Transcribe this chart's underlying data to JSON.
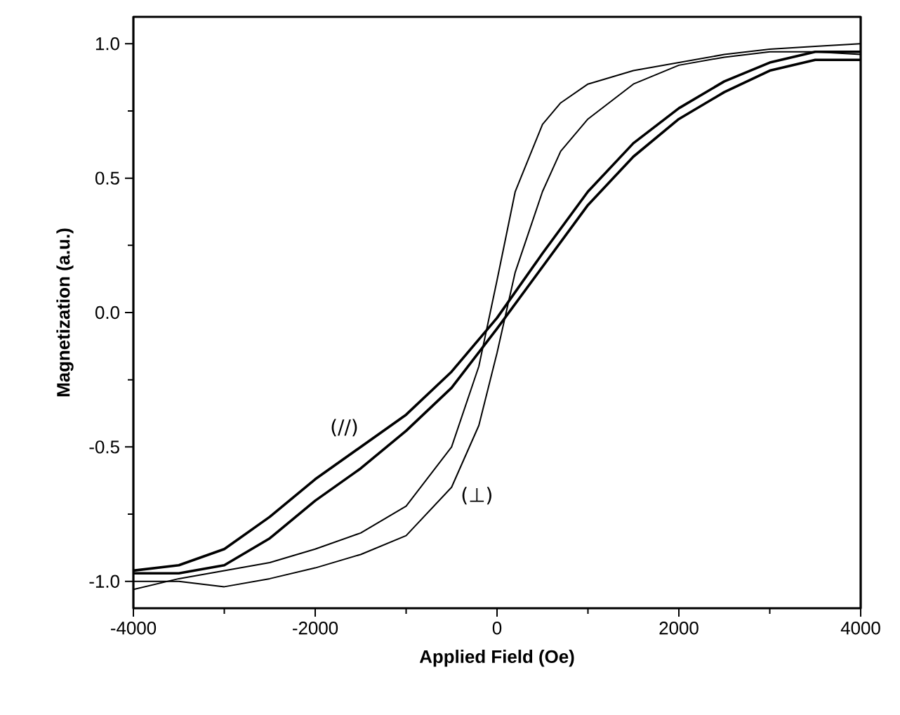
{
  "chart_data": {
    "type": "line",
    "xlabel": "Applied Field (Oe)",
    "ylabel": "Magnetization (a.u.)",
    "xlim": [
      -4000,
      4000
    ],
    "ylim": [
      -1.1,
      1.1
    ],
    "xticks": [
      -4000,
      -2000,
      0,
      2000,
      4000
    ],
    "yticks": [
      {
        "value": -1.0,
        "label": "-1.0"
      },
      {
        "value": -0.5,
        "label": "-0.5"
      },
      {
        "value": 0.0,
        "label": "0.0"
      },
      {
        "value": 0.5,
        "label": "0.5"
      },
      {
        "value": 1.0,
        "label": "1.0"
      }
    ],
    "series": [
      {
        "name": "(//)",
        "color": "#000000",
        "x": [
          -4000,
          -3500,
          -3000,
          -2500,
          -2000,
          -1500,
          -1000,
          -500,
          0,
          500,
          1000,
          1500,
          2000,
          2500,
          3000,
          3500,
          4000
        ],
        "values": [
          -0.96,
          -0.94,
          -0.88,
          -0.76,
          -0.62,
          -0.5,
          -0.38,
          -0.22,
          -0.02,
          0.22,
          0.45,
          0.63,
          0.76,
          0.86,
          0.93,
          0.97,
          0.97
        ]
      },
      {
        "color": "#000000",
        "x": [
          -4000,
          -3500,
          -3000,
          -2500,
          -2000,
          -1500,
          -1000,
          -500,
          0,
          500,
          1000,
          1500,
          2000,
          2500,
          3000,
          3500,
          4000
        ],
        "values": [
          -0.97,
          -0.97,
          -0.94,
          -0.84,
          -0.7,
          -0.58,
          -0.44,
          -0.28,
          -0.06,
          0.17,
          0.4,
          0.58,
          0.72,
          0.82,
          0.9,
          0.94,
          0.94
        ]
      },
      {
        "color": "#000000",
        "x": [
          -4000,
          -3500,
          -3000,
          -2500,
          -2000,
          -1500,
          -1000,
          -500,
          -200,
          0,
          200,
          500,
          700,
          1000,
          1500,
          2000,
          2500,
          3000,
          3500,
          4000
        ],
        "values": [
          -1.03,
          -0.99,
          -0.96,
          -0.93,
          -0.88,
          -0.82,
          -0.72,
          -0.5,
          -0.2,
          0.12,
          0.45,
          0.7,
          0.78,
          0.85,
          0.9,
          0.93,
          0.96,
          0.98,
          0.99,
          1.0
        ]
      },
      {
        "name": "(⊥)",
        "color": "#000000",
        "x": [
          -4000,
          -3500,
          -3000,
          -2500,
          -2000,
          -1500,
          -1000,
          -500,
          -200,
          0,
          200,
          500,
          700,
          1000,
          1500,
          2000,
          2500,
          3000,
          3500,
          4000
        ],
        "values": [
          -1.0,
          -1.0,
          -1.02,
          -0.99,
          -0.95,
          -0.9,
          -0.83,
          -0.65,
          -0.42,
          -0.15,
          0.15,
          0.45,
          0.6,
          0.72,
          0.85,
          0.92,
          0.95,
          0.97,
          0.97,
          0.96
        ]
      }
    ]
  }
}
